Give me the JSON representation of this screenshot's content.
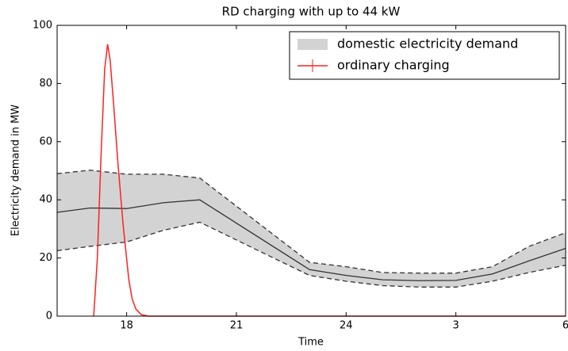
{
  "chart_data": {
    "type": "line",
    "title": "RD charging with up to 44 kW",
    "x_label": "Time",
    "y_label": "Electricity demand in MW",
    "xlim": [
      16.1,
      30
    ],
    "xticks": [
      18,
      21,
      24,
      {
        "value": 27,
        "label": "3"
      },
      {
        "value": 30,
        "label": "6"
      }
    ],
    "ylim": [
      0,
      100
    ],
    "yticks": [
      0,
      20,
      40,
      60,
      80,
      100
    ],
    "legend": "upper right",
    "series": [
      {
        "name": "domestic electricity demand",
        "color": "#d3d3d3",
        "edge_color": "#333333",
        "x": [
          16.1,
          17,
          18,
          19,
          20,
          23,
          24,
          25,
          26,
          27,
          28,
          29,
          30
        ],
        "values": [
          35.7,
          37.2,
          37,
          39,
          40,
          16,
          14,
          12.5,
          12.2,
          12.3,
          14.5,
          19,
          23.3
        ],
        "upper": [
          49,
          50.2,
          48.8,
          48.8,
          47.5,
          18.5,
          17,
          15,
          14.8,
          14.8,
          17,
          24,
          28.7
        ],
        "lower": [
          22.5,
          24,
          25.5,
          29.5,
          32.3,
          14,
          12,
          10.5,
          10,
          10,
          12,
          15,
          17.5
        ]
      },
      {
        "name": "ordinary charging",
        "color": "#ff2020",
        "x": [
          17.1,
          17.2,
          17.3,
          17.4,
          17.48,
          17.55,
          17.65,
          17.76,
          17.9,
          18.06,
          18.15,
          18.25,
          18.4,
          18.6,
          30
        ],
        "values": [
          0,
          20,
          55,
          85,
          93.5,
          88,
          72,
          53,
          32,
          12.5,
          6,
          2.5,
          0.5,
          0,
          0
        ]
      }
    ]
  }
}
